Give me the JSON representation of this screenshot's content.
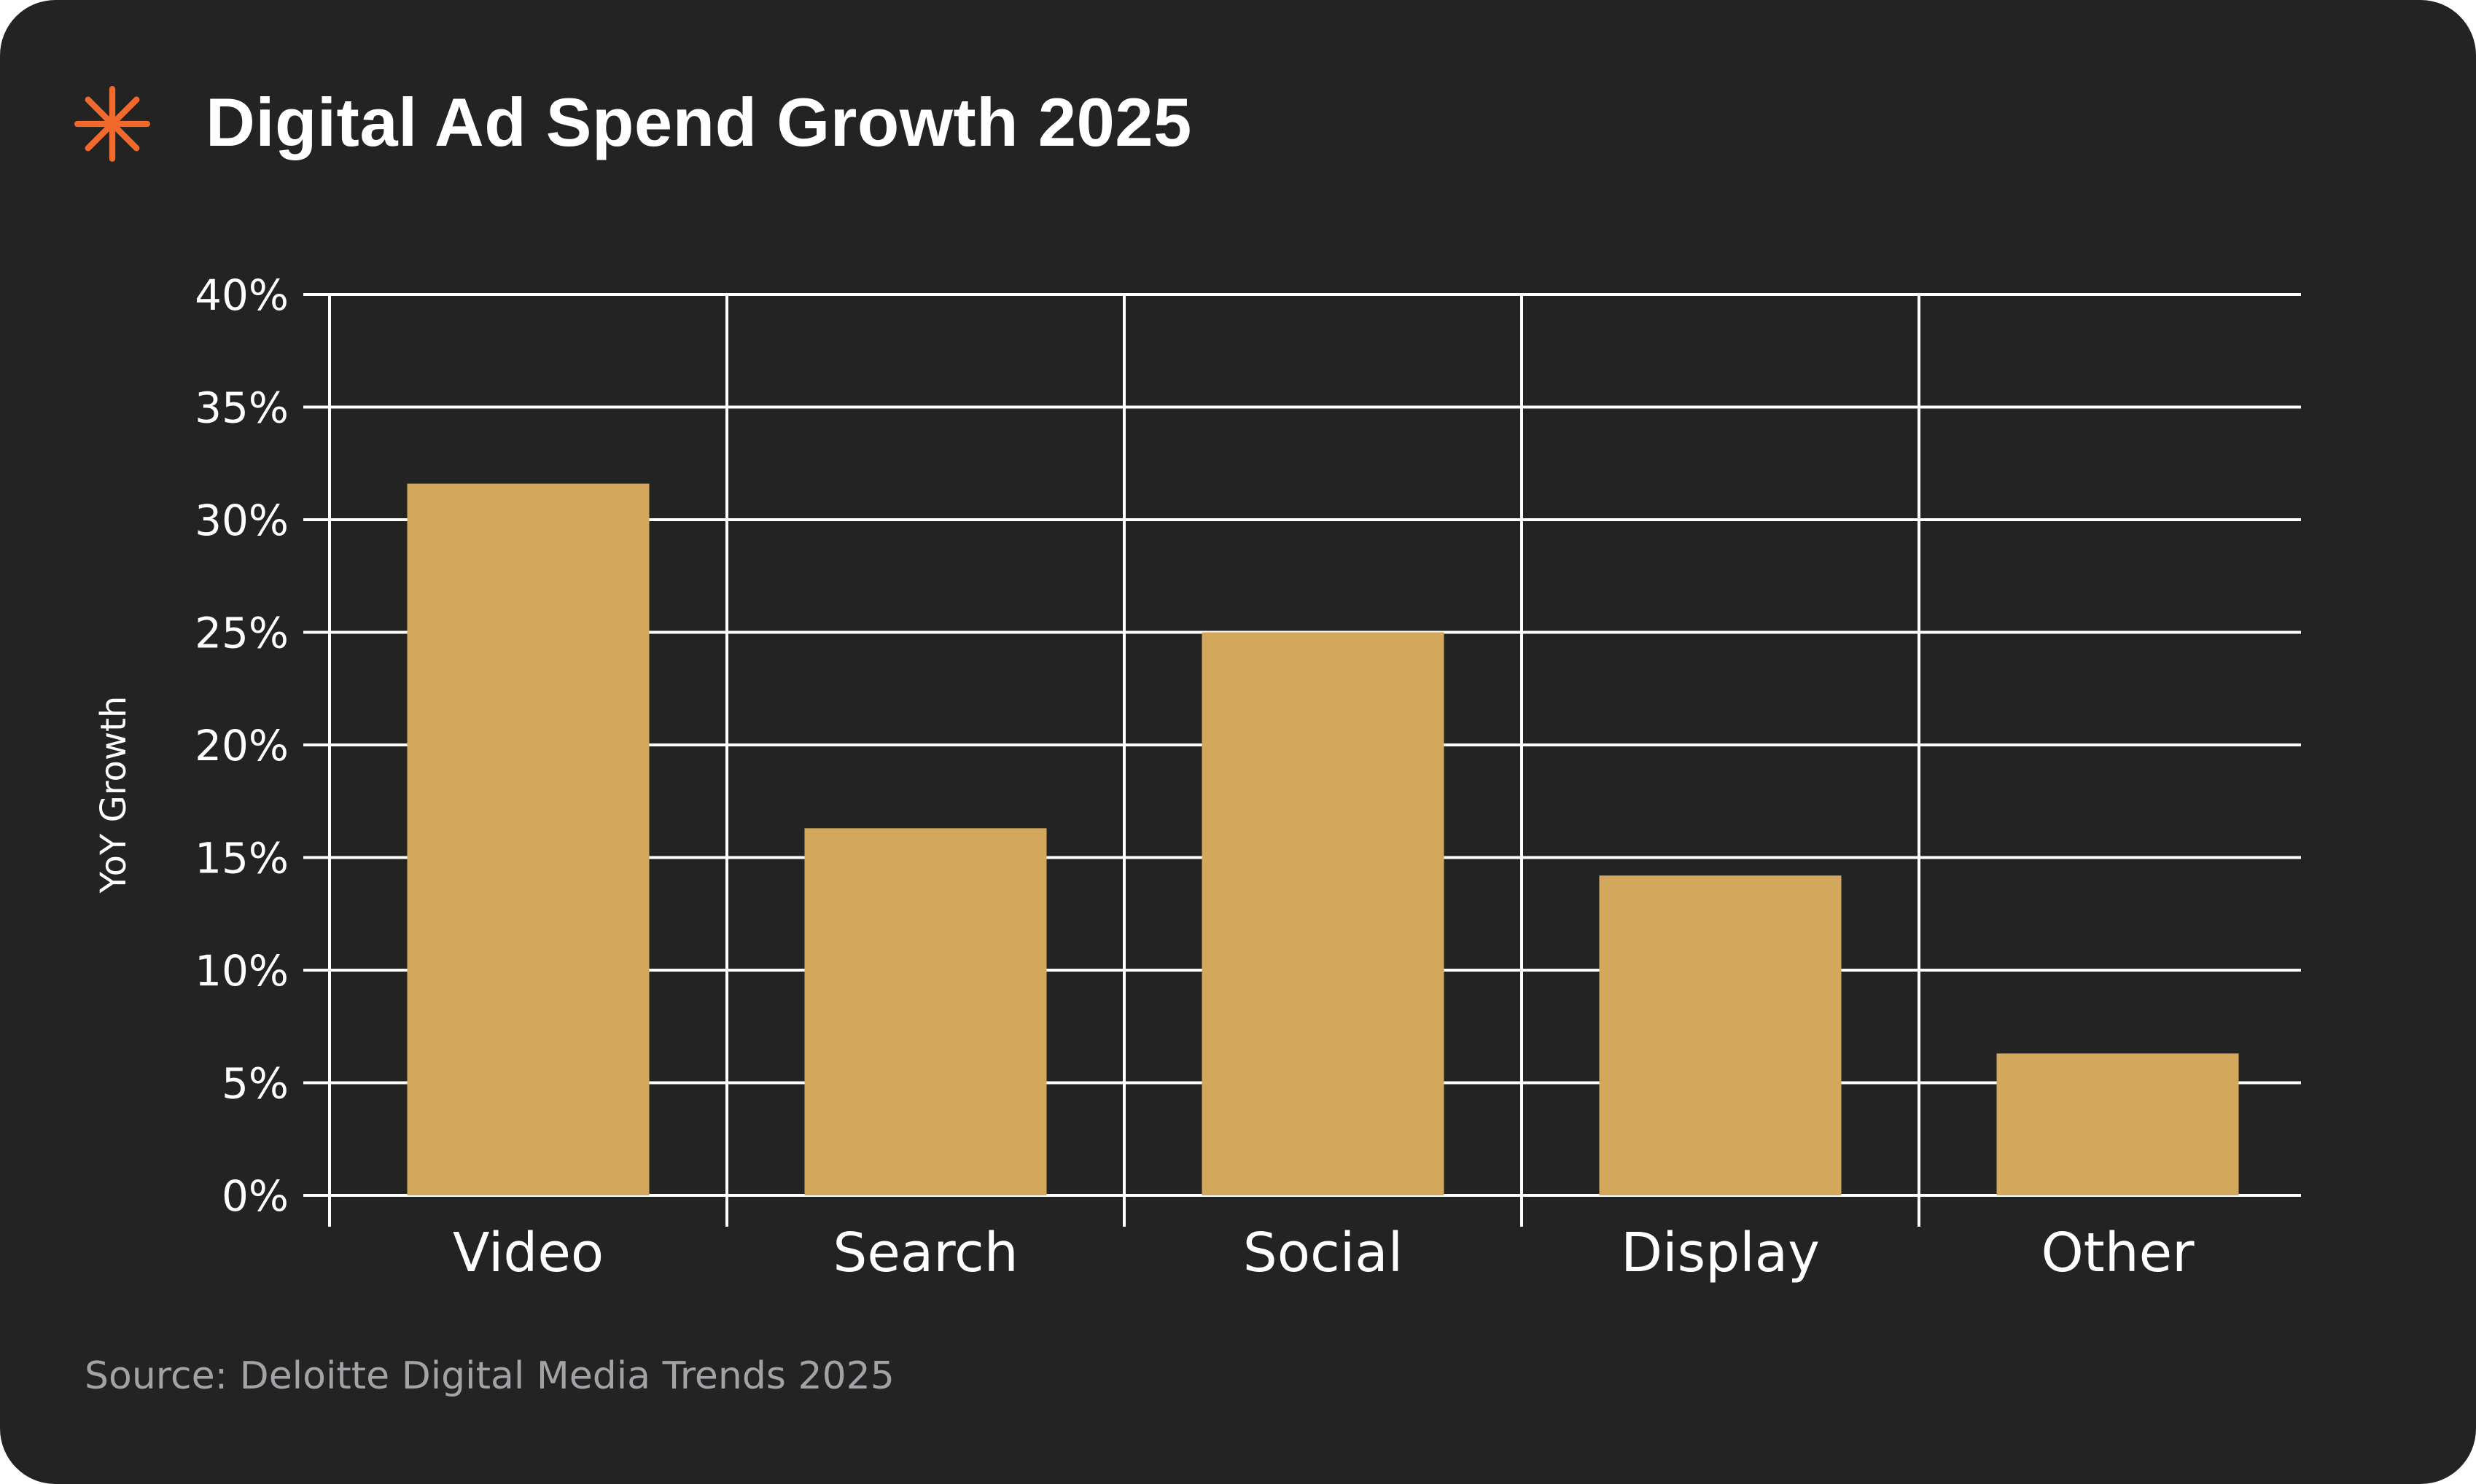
{
  "header": {
    "icon": "asterisk-burst-icon",
    "title": "Digital Ad Spend Growth 2025"
  },
  "colors": {
    "background": "#232323",
    "accent": "#f26a2b",
    "bar": "#d4a85c",
    "grid": "#ffffff",
    "text": "#ffffff",
    "source_text": "#a2a3a7"
  },
  "chart_data": {
    "type": "bar",
    "title": "Digital Ad Spend Growth 2025",
    "xlabel": "",
    "ylabel": "YoY Growth",
    "categories": [
      "Video",
      "Search",
      "Social",
      "Display",
      "Other"
    ],
    "values": [
      31.6,
      16.3,
      25.0,
      14.2,
      6.3
    ],
    "unit": "%",
    "ylim": [
      0,
      40
    ],
    "yticks": [
      0,
      5,
      10,
      15,
      20,
      25,
      30,
      35,
      40
    ],
    "ytick_labels": [
      "0%",
      "5%",
      "10%",
      "15%",
      "20%",
      "25%",
      "30%",
      "35%",
      "40%"
    ],
    "grid": true,
    "legend": "none"
  },
  "footer": {
    "source": "Source: Deloitte Digital Media Trends 2025"
  }
}
